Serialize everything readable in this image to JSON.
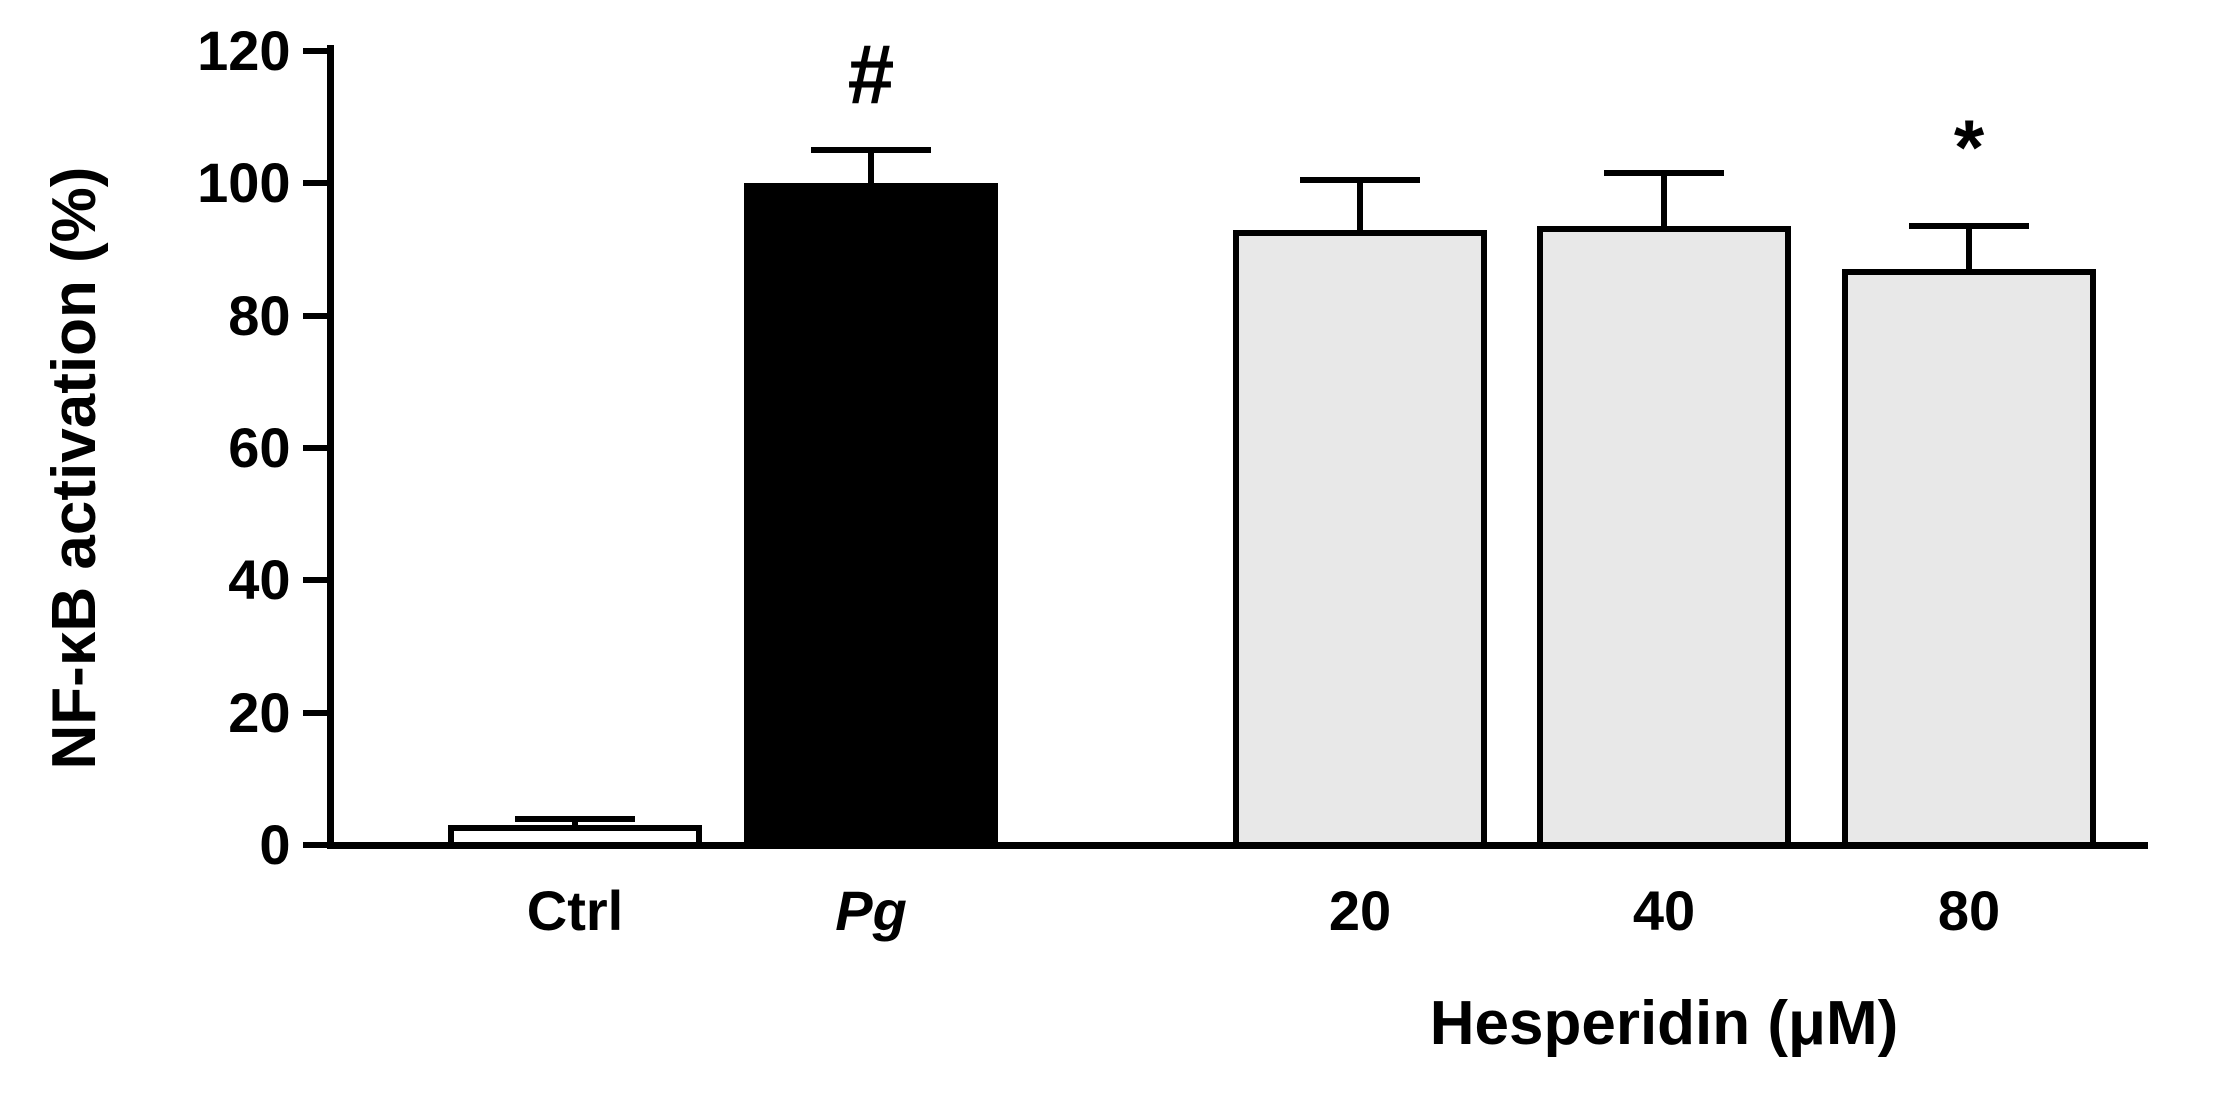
{
  "figure": {
    "background": "#ffffff",
    "axis_color": "#000000",
    "bar_outline_color": "#000000",
    "gray_fill": "#e8e8e8"
  },
  "chart_data": {
    "type": "bar",
    "title": "",
    "ylabel": "NF-κB activation (%)",
    "xlabel": "Hesperidin (μM)",
    "ylim": [
      0,
      120
    ],
    "yticks": [
      0,
      20,
      40,
      60,
      80,
      100,
      120
    ],
    "grid": false,
    "legend": "none",
    "error_bars": "upper caps only",
    "categories": [
      "Ctrl",
      "Pg",
      "20",
      "40",
      "80"
    ],
    "bars": [
      {
        "label": "Ctrl",
        "value": 3,
        "error_upper": 1,
        "fill": "#ffffff",
        "annotation": "",
        "label_italic": false
      },
      {
        "label": "Pg",
        "value": 100,
        "error_upper": 5,
        "fill": "#000000",
        "annotation": "#",
        "label_italic": true
      },
      {
        "label": "20",
        "value": 93,
        "error_upper": 7.5,
        "fill": "#e8e8e8",
        "annotation": "",
        "label_italic": false
      },
      {
        "label": "40",
        "value": 93.5,
        "error_upper": 8,
        "fill": "#e8e8e8",
        "annotation": "",
        "label_italic": false
      },
      {
        "label": "80",
        "value": 87,
        "error_upper": 6.5,
        "fill": "#e8e8e8",
        "annotation": "*",
        "label_italic": false
      }
    ],
    "annotations": [
      {
        "symbol": "#",
        "bar": "Pg"
      },
      {
        "symbol": "*",
        "bar": "80"
      }
    ],
    "group_label": "Hesperidin (μM)",
    "group_label_applies_to": [
      "20",
      "40",
      "80"
    ]
  }
}
